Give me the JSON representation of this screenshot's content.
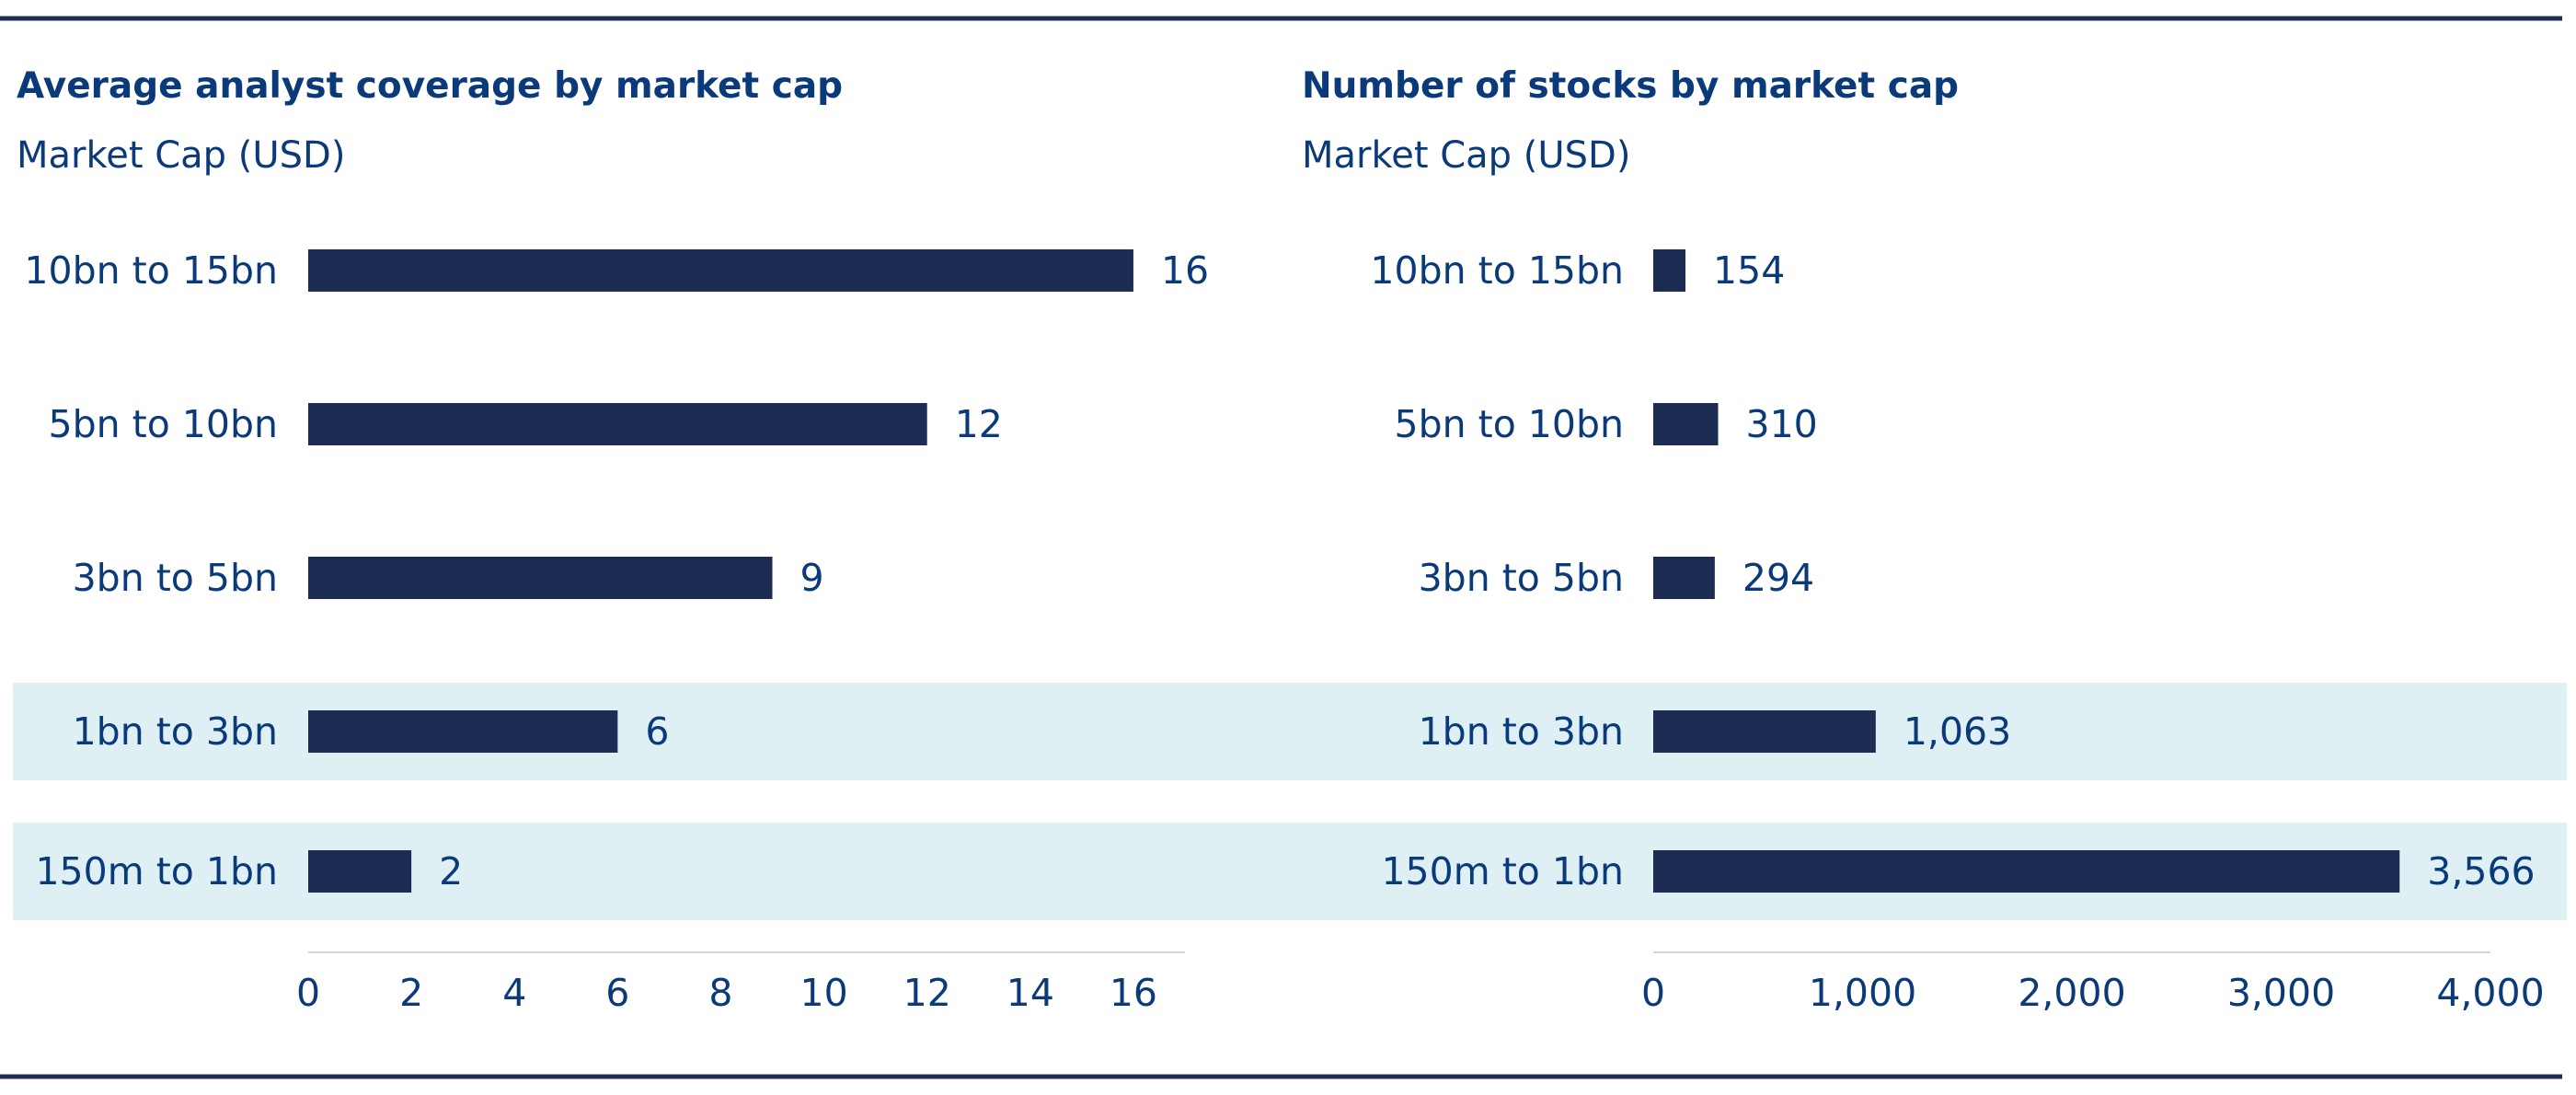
{
  "colors": {
    "bar": "#1c2c52",
    "highlight_band": "#dff0f4",
    "text": "#0a3a7a",
    "rule": "#1c2c52",
    "axis": "#d4d4d4"
  },
  "chart_data": [
    {
      "type": "bar",
      "orientation": "horizontal",
      "title": "Average analyst coverage by market cap",
      "subtitle": "Market Cap (USD)",
      "categories": [
        "10bn to 15bn",
        "5bn to 10bn",
        "3bn to 5bn",
        "1bn to 3bn",
        "150m to 1bn"
      ],
      "values": [
        16,
        12,
        9,
        6,
        2
      ],
      "value_labels": [
        "16",
        "12",
        "9",
        "6",
        "2"
      ],
      "highlighted": [
        false,
        false,
        false,
        true,
        true
      ],
      "xlim": [
        0,
        17
      ],
      "ticks": [
        0,
        2,
        4,
        6,
        8,
        10,
        12,
        14,
        16
      ],
      "tick_labels": [
        "0",
        "2",
        "4",
        "6",
        "8",
        "10",
        "12",
        "14",
        "16"
      ],
      "grid": false
    },
    {
      "type": "bar",
      "orientation": "horizontal",
      "title": "Number of stocks by market cap",
      "subtitle": "Market Cap (USD)",
      "categories": [
        "10bn to 15bn",
        "5bn to 10bn",
        "3bn to 5bn",
        "1bn to 3bn",
        "150m to 1bn"
      ],
      "values": [
        154,
        310,
        294,
        1063,
        3566
      ],
      "value_labels": [
        "154",
        "310",
        "294",
        "1,063",
        "3,566"
      ],
      "highlighted": [
        false,
        false,
        false,
        true,
        true
      ],
      "xlim": [
        0,
        4000
      ],
      "ticks": [
        0,
        1000,
        2000,
        3000,
        4000
      ],
      "tick_labels": [
        "0",
        "1,000",
        "2,000",
        "3,000",
        "4,000"
      ],
      "grid": false
    }
  ]
}
